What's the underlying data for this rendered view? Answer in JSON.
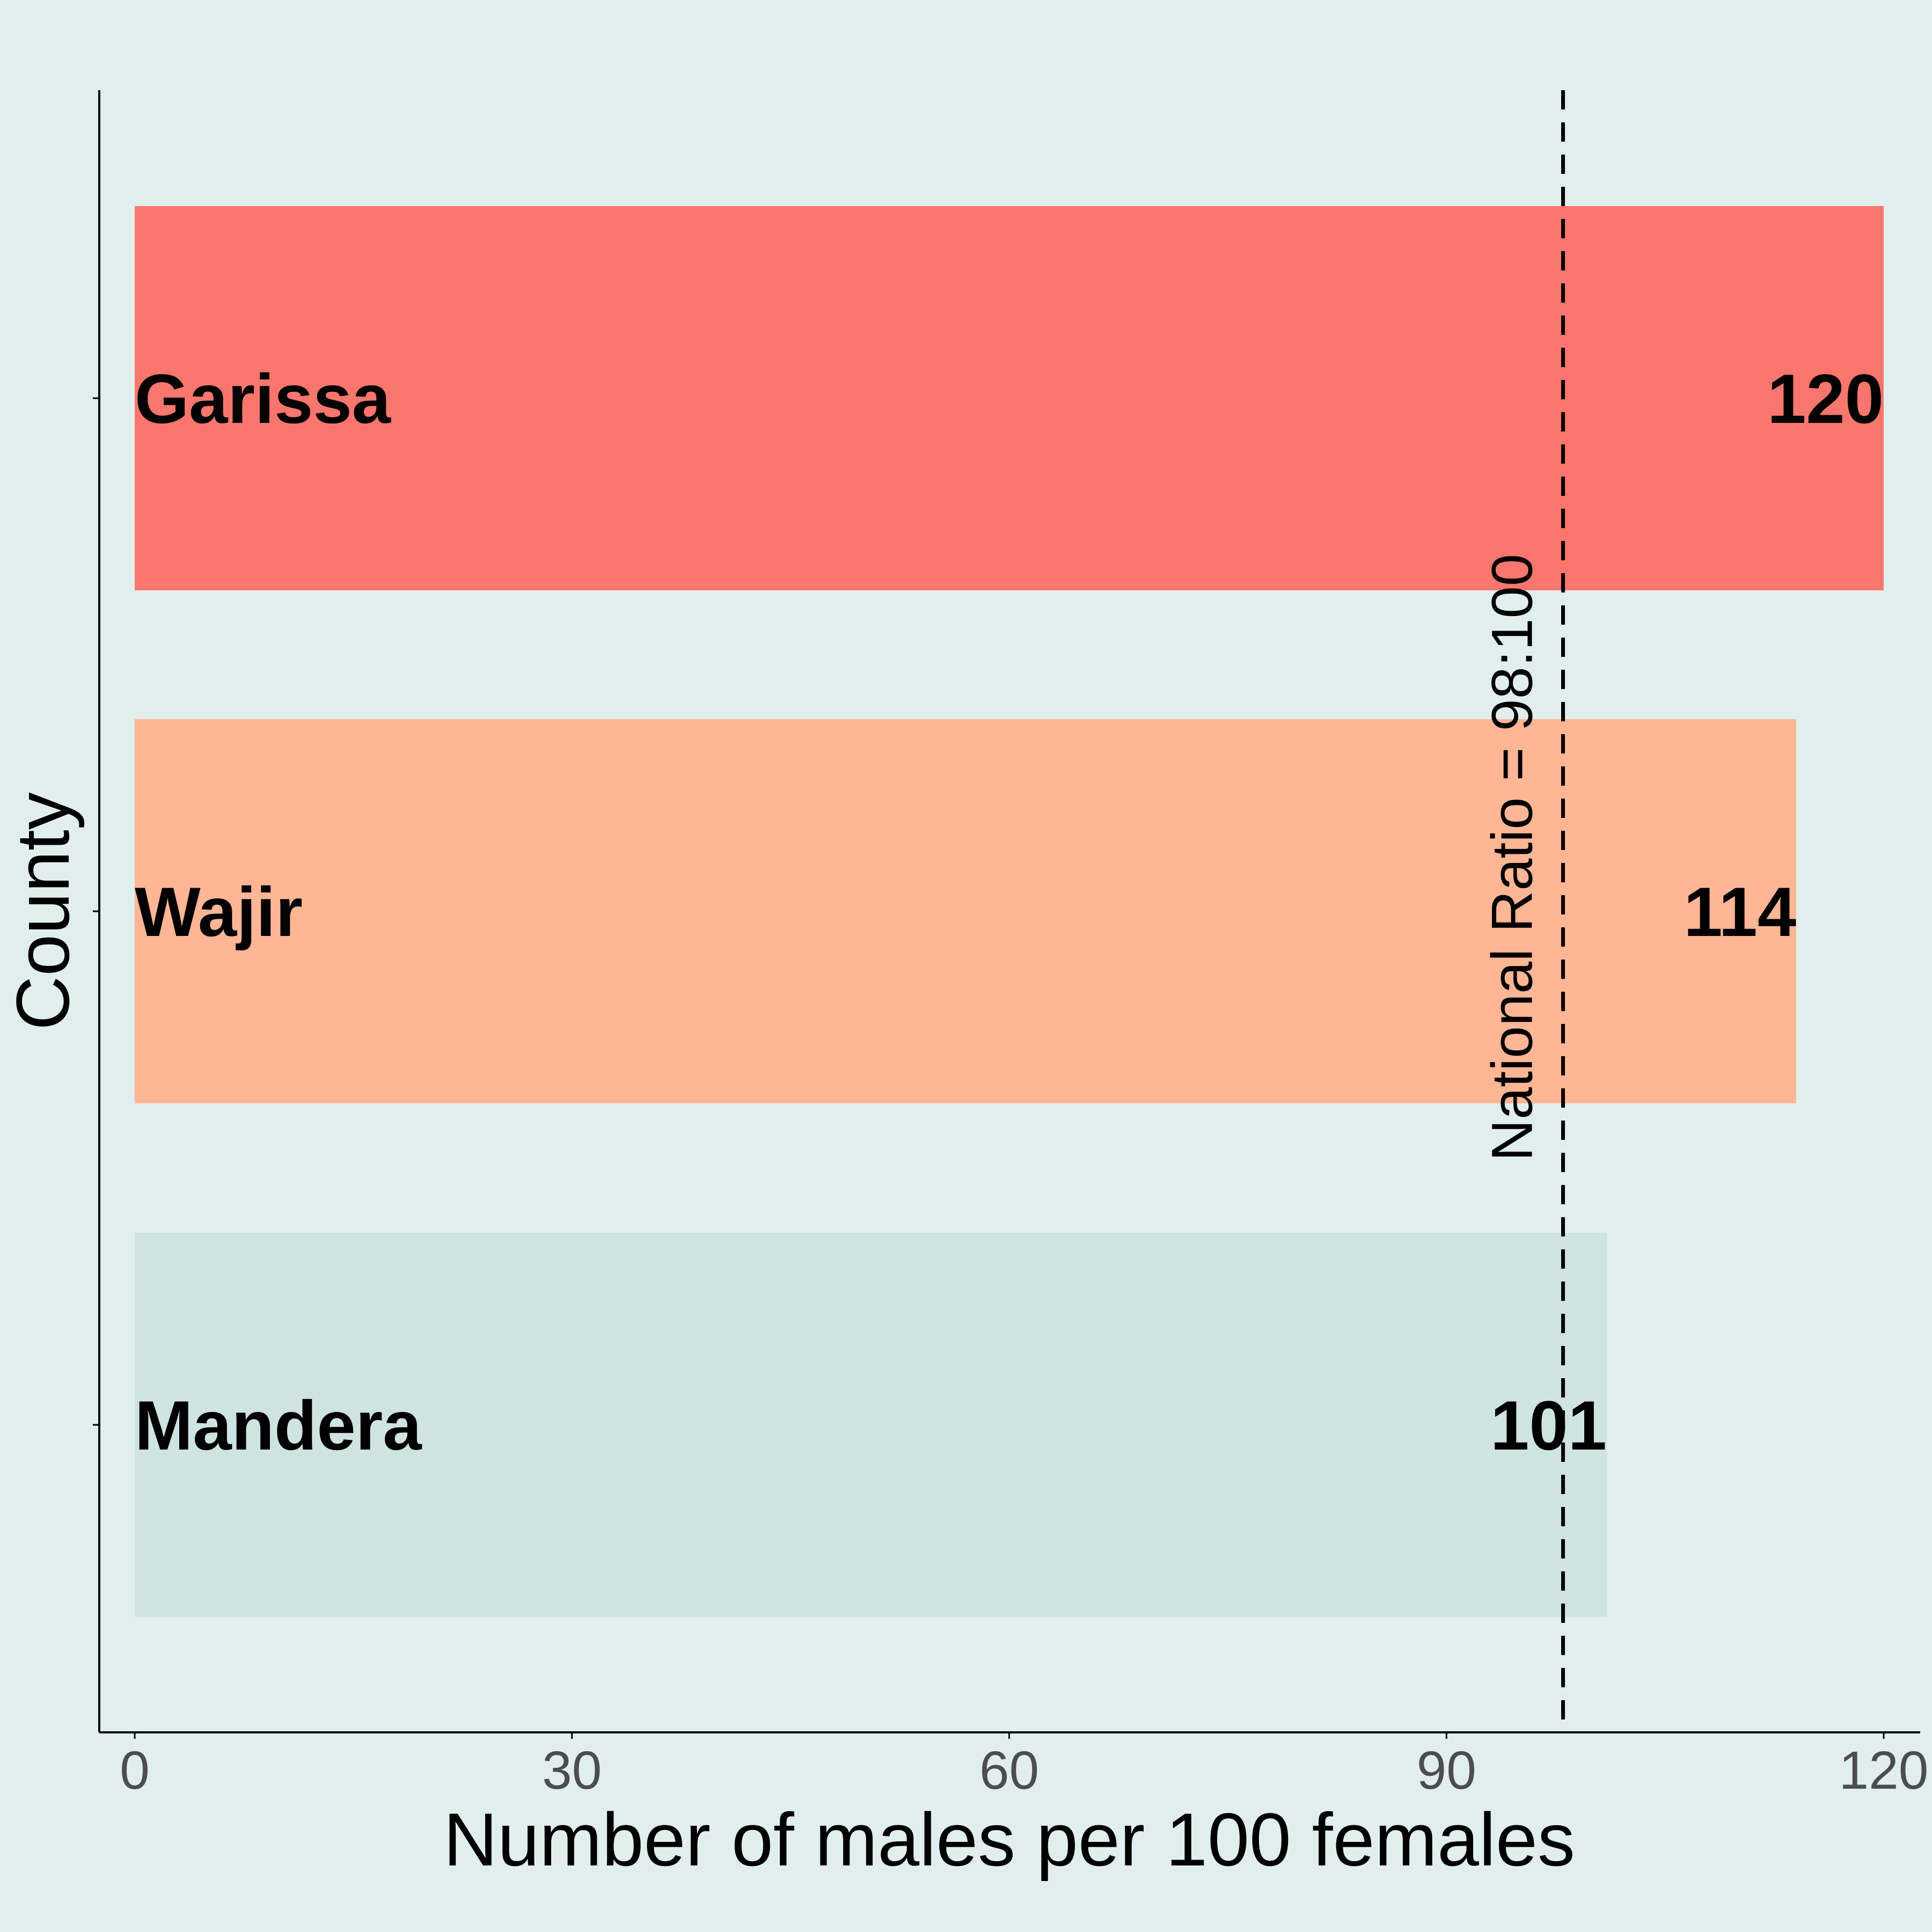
{
  "chart_data": {
    "type": "bar",
    "orientation": "horizontal",
    "categories": [
      "Garissa",
      "Wajir",
      "Mandera"
    ],
    "values": [
      120,
      114,
      101
    ],
    "value_labels": [
      "120",
      "114",
      "101"
    ],
    "colors": [
      "#f8766d",
      "#ffb695",
      "#cfe3e1"
    ],
    "xlabel": "Number of males per 100 females",
    "ylabel": "County",
    "xlim": [
      0,
      120
    ],
    "xticks": [
      0,
      30,
      60,
      90,
      120
    ],
    "xtick_labels": [
      "0",
      "30",
      "60",
      "90",
      "120"
    ],
    "reference_line": {
      "value": 98,
      "style": "dashed",
      "label": "National Ratio = 98:100"
    },
    "grid": false,
    "legend": "none",
    "background": "#e0efee"
  }
}
